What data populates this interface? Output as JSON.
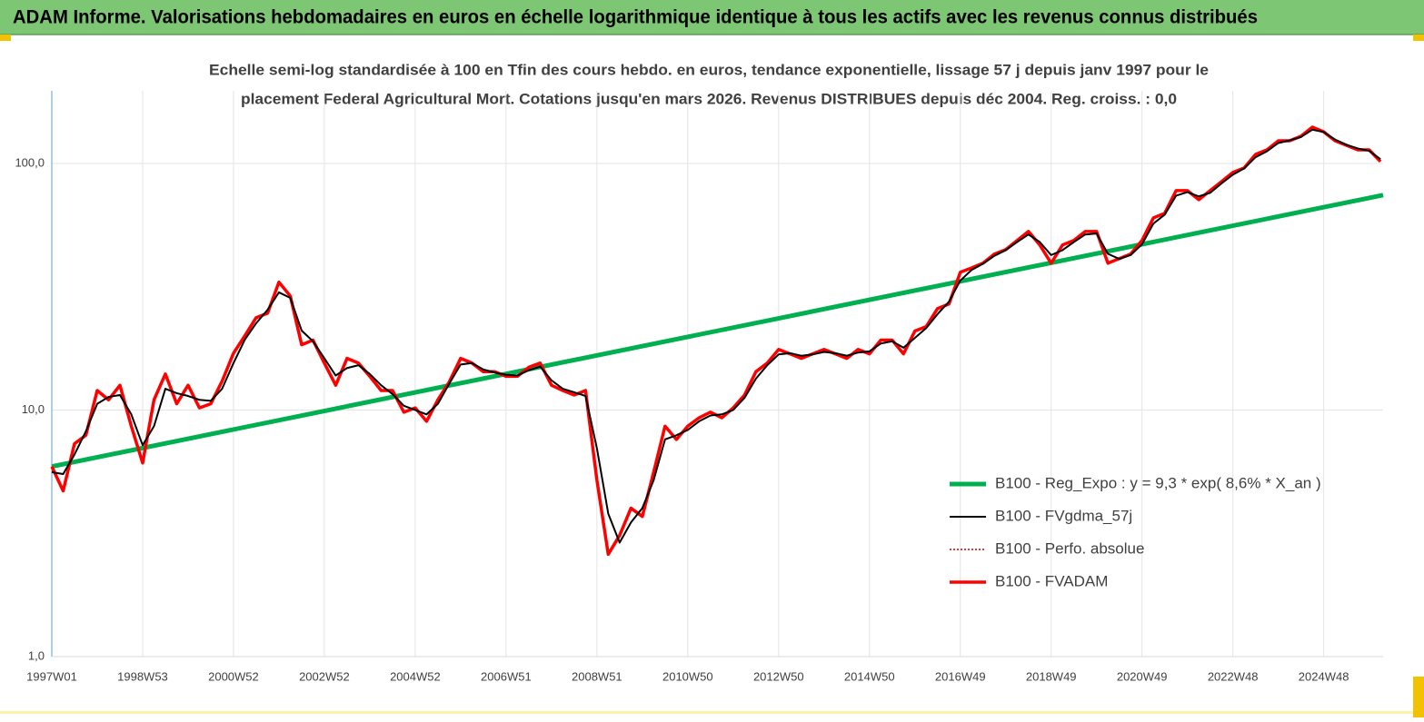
{
  "chart_data": {
    "type": "line",
    "title": "ADAM Informe. Valorisations hebdomadaires en euros en échelle logarithmique identique à tous les actifs avec les revenus connus distribués",
    "subtitle": [
      "Echelle semi-log standardisée à 100 en Tfin des cours hebdo. en euros, tendance exponentielle, lissage 57 j depuis janv 1997 pour le",
      "placement Federal Agricultural Mort. Cotations jusqu'en mars 2026. Revenus DISTRIBUES depuis déc 2004. Reg. croiss. : 0,0"
    ],
    "log_scale": true,
    "grid": true,
    "legend": "right",
    "ylim": [
      1,
      197
    ],
    "yticks": [
      {
        "value": 1,
        "label": "1,0"
      },
      {
        "value": 10,
        "label": "10,0"
      },
      {
        "value": 100,
        "label": "100,0"
      }
    ],
    "xlim": [
      0,
      1524
    ],
    "xticks": [
      {
        "value": 0,
        "label": "1997W01"
      },
      {
        "value": 104,
        "label": "1998W53"
      },
      {
        "value": 208,
        "label": "2000W52"
      },
      {
        "value": 312,
        "label": "2002W52"
      },
      {
        "value": 416,
        "label": "2004W52"
      },
      {
        "value": 520,
        "label": "2006W51"
      },
      {
        "value": 624,
        "label": "2008W51"
      },
      {
        "value": 728,
        "label": "2010W50"
      },
      {
        "value": 832,
        "label": "2012W50"
      },
      {
        "value": 936,
        "label": "2014W50"
      },
      {
        "value": 1040,
        "label": "2016W49"
      },
      {
        "value": 1144,
        "label": "2018W49"
      },
      {
        "value": 1248,
        "label": "2020W49"
      },
      {
        "value": 1352,
        "label": "2022W48"
      },
      {
        "value": 1456,
        "label": "2024W48"
      }
    ],
    "x": [
      0,
      13,
      26,
      39,
      52,
      65,
      78,
      91,
      104,
      117,
      130,
      143,
      156,
      169,
      182,
      195,
      208,
      221,
      234,
      247,
      260,
      273,
      286,
      299,
      312,
      325,
      338,
      351,
      364,
      377,
      390,
      403,
      416,
      429,
      442,
      455,
      468,
      481,
      494,
      507,
      520,
      533,
      546,
      559,
      572,
      585,
      598,
      611,
      624,
      637,
      650,
      663,
      676,
      689,
      702,
      715,
      728,
      741,
      754,
      767,
      780,
      793,
      806,
      819,
      832,
      845,
      858,
      871,
      884,
      897,
      910,
      923,
      936,
      949,
      962,
      975,
      988,
      1001,
      1014,
      1027,
      1040,
      1053,
      1066,
      1079,
      1092,
      1105,
      1118,
      1131,
      1144,
      1157,
      1170,
      1183,
      1196,
      1209,
      1222,
      1235,
      1248,
      1261,
      1274,
      1287,
      1300,
      1313,
      1326,
      1339,
      1352,
      1365,
      1378,
      1391,
      1404,
      1417,
      1430,
      1443,
      1456,
      1469,
      1482,
      1495,
      1508,
      1521
    ],
    "series": [
      {
        "name": "B100 - Reg_Expo : y = 9,3 * exp( 8,6% *  X_an )",
        "color": "#00b050",
        "width": 5,
        "x": [
          0,
          1524
        ],
        "values": [
          5.9,
          74.4
        ]
      },
      {
        "name": "B100 - FVgdma_57j",
        "color": "#000000",
        "width": 2,
        "values": [
          5.6,
          5.5,
          6.6,
          8.2,
          10.6,
          11.3,
          11.5,
          9.6,
          7.2,
          8.6,
          12.2,
          11.7,
          11.4,
          11,
          10.9,
          12.2,
          15.5,
          19.3,
          22.5,
          25.5,
          30,
          28.5,
          21,
          19,
          16.2,
          13.8,
          14.8,
          15.2,
          14,
          12.6,
          11.6,
          10.4,
          10,
          9.6,
          10.6,
          12.8,
          15.3,
          15.5,
          14.6,
          14.2,
          13.9,
          13.8,
          14.5,
          15,
          13.2,
          12.2,
          11.8,
          11.4,
          7,
          3.8,
          2.9,
          3.5,
          4,
          5.2,
          7.6,
          7.9,
          8.3,
          9,
          9.5,
          9.6,
          10,
          11.2,
          13.4,
          15.2,
          16.8,
          17,
          16.6,
          16.8,
          17.2,
          17,
          16.6,
          17.1,
          17.3,
          18.6,
          19,
          17.9,
          19.6,
          21.5,
          24.5,
          27.5,
          33.5,
          37,
          39.2,
          42.2,
          44.5,
          48,
          51.5,
          48,
          42.5,
          44.5,
          48,
          51.5,
          52,
          43,
          41,
          42.5,
          47,
          57,
          62,
          74,
          76.5,
          73.5,
          76,
          83,
          90,
          95.5,
          106,
          112,
          121,
          124,
          128,
          137,
          134,
          125,
          119,
          115,
          112.5,
          104
        ]
      },
      {
        "name": "B100 - Perfo. absolue",
        "color": "#c00000",
        "width": 1.5,
        "dashed": true,
        "values": [
          5.9,
          4.7,
          7.3,
          7.9,
          12,
          11,
          12.6,
          8.6,
          6.1,
          11,
          14,
          10.6,
          12.6,
          10.2,
          10.6,
          13.1,
          17,
          20,
          23.7,
          24.7,
          33,
          29,
          18.4,
          19.2,
          15.5,
          12.6,
          16.2,
          15.5,
          13.7,
          12,
          12,
          9.8,
          10.2,
          9,
          11,
          13,
          16.2,
          15.5,
          14.3,
          14.3,
          13.7,
          13.7,
          14.9,
          15.5,
          12.6,
          12,
          11.5,
          12,
          5.2,
          2.6,
          3.1,
          4,
          3.7,
          5.6,
          8.6,
          7.6,
          8.6,
          9.3,
          9.8,
          9.3,
          10.2,
          11.5,
          14.3,
          15.5,
          17.6,
          16.9,
          16.2,
          16.9,
          17.6,
          16.9,
          16.2,
          17.6,
          16.9,
          19.2,
          19.2,
          16.9,
          20.9,
          21.8,
          25.8,
          26.9,
          36.2,
          37.7,
          39.4,
          42.9,
          44.7,
          48.7,
          53,
          46.7,
          39.4,
          46.7,
          48.7,
          53,
          53,
          39.4,
          41.1,
          42.9,
          48.7,
          60.1,
          62.8,
          77.6,
          77.6,
          71.3,
          77.6,
          84.4,
          91.9,
          95.9,
          108.8,
          113.5,
          123.5,
          123.5,
          128.9,
          140.3,
          134.4,
          123.5,
          118.4,
          113.5,
          113.5,
          101.7
        ]
      },
      {
        "name": "B100 - FVADAM",
        "color": "#ff0000",
        "width": 3.5,
        "values": [
          5.9,
          4.7,
          7.3,
          7.9,
          12,
          11,
          12.6,
          8.6,
          6.1,
          11,
          14,
          10.6,
          12.6,
          10.2,
          10.6,
          13.1,
          17,
          20,
          23.7,
          24.7,
          33,
          29,
          18.4,
          19.2,
          15.5,
          12.6,
          16.2,
          15.5,
          13.7,
          12,
          12,
          9.8,
          10.2,
          9,
          11,
          13,
          16.2,
          15.5,
          14.3,
          14.3,
          13.7,
          13.7,
          14.9,
          15.5,
          12.6,
          12,
          11.5,
          12,
          5.2,
          2.6,
          3.1,
          4,
          3.7,
          5.6,
          8.6,
          7.6,
          8.6,
          9.3,
          9.8,
          9.3,
          10.2,
          11.5,
          14.3,
          15.5,
          17.6,
          16.9,
          16.2,
          16.9,
          17.6,
          16.9,
          16.2,
          17.6,
          16.9,
          19.2,
          19.2,
          16.9,
          20.9,
          21.8,
          25.8,
          26.9,
          36.2,
          37.7,
          39.4,
          42.9,
          44.7,
          48.7,
          53,
          46.7,
          39.4,
          46.7,
          48.7,
          53,
          53,
          39.4,
          41.1,
          42.9,
          48.7,
          60.1,
          62.8,
          77.6,
          77.6,
          71.3,
          77.6,
          84.4,
          91.9,
          95.9,
          108.8,
          113.5,
          123.5,
          123.5,
          128.9,
          140.3,
          134.4,
          123.5,
          118.4,
          113.5,
          113.5,
          101.7
        ]
      }
    ]
  }
}
